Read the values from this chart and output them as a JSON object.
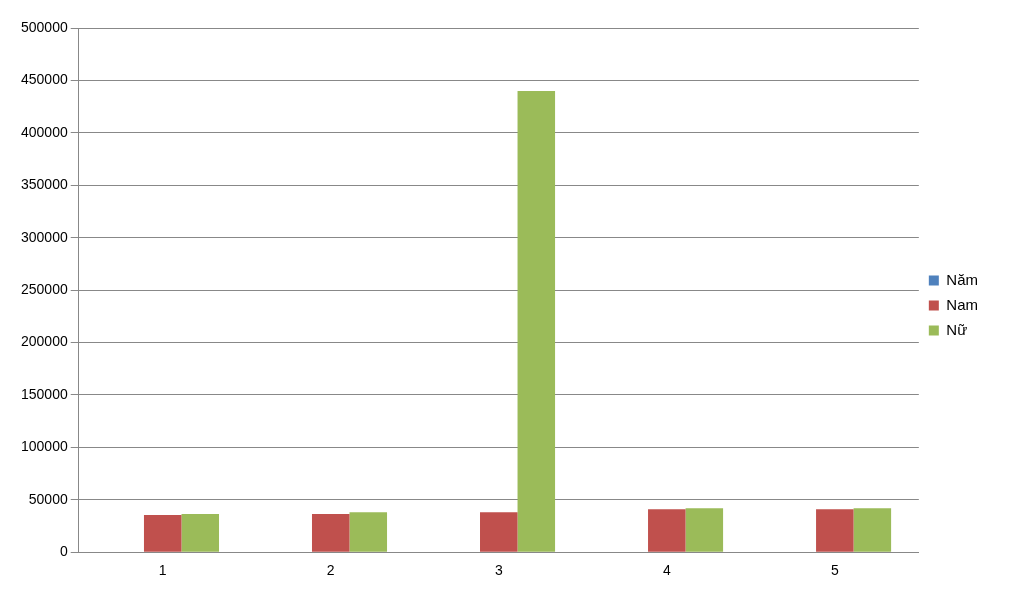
{
  "chart_data": {
    "type": "bar",
    "categories": [
      "1",
      "2",
      "3",
      "4",
      "5"
    ],
    "series": [
      {
        "name": "Năm",
        "color": "#4f81bd",
        "values": [
          null,
          null,
          null,
          null,
          null
        ]
      },
      {
        "name": "Nam",
        "color": "#c0504d",
        "values": [
          35500,
          36500,
          38000,
          41000,
          41000
        ]
      },
      {
        "name": "Nữ",
        "color": "#9bbb59",
        "values": [
          36500,
          38000,
          440000,
          42000,
          42000
        ]
      }
    ],
    "ylim": [
      0,
      500000
    ],
    "yticks": [
      0,
      50000,
      100000,
      150000,
      200000,
      250000,
      300000,
      350000,
      400000,
      450000,
      500000
    ],
    "grid": "y",
    "legend": "right"
  }
}
